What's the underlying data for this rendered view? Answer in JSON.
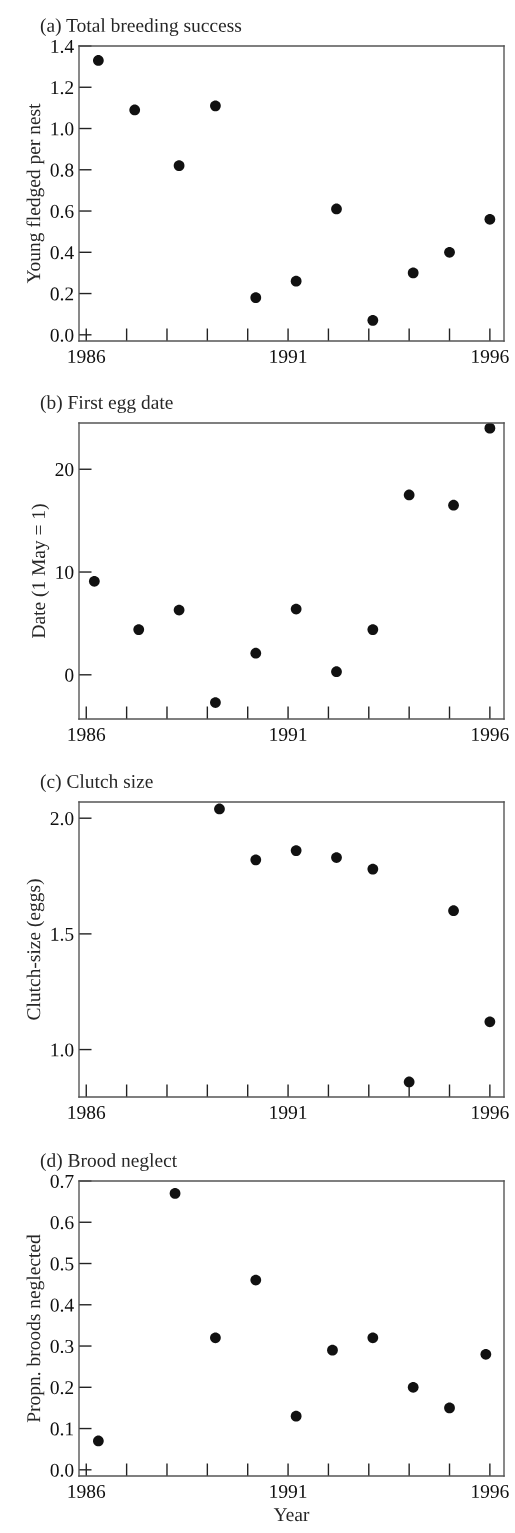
{
  "chart_data": [
    {
      "type": "scatter",
      "title": "(a) Total breeding success",
      "ylabel": "Young fledged per nest",
      "marker": "circle",
      "grid": false,
      "xlim": [
        1985.82,
        1996.35
      ],
      "ylim": [
        -0.03,
        1.4
      ],
      "xticks": [
        1986,
        {
          "value": 1987,
          "label": null
        },
        {
          "value": 1988,
          "label": null
        },
        {
          "value": 1989,
          "label": null
        },
        {
          "value": 1990,
          "label": null
        },
        1991,
        {
          "value": 1992,
          "label": null
        },
        {
          "value": 1993,
          "label": null
        },
        {
          "value": 1994,
          "label": null
        },
        {
          "value": 1995,
          "label": null
        },
        1996
      ],
      "yticks": [
        {
          "value": 0,
          "label": "0.0"
        },
        0.2,
        0.4,
        0.6,
        0.8,
        {
          "value": 1,
          "label": "1.0"
        },
        1.2,
        1.4
      ],
      "series": [
        {
          "color": "#111111",
          "x": [
            1986.3,
            1987.2,
            1988.3,
            1989.2,
            1990.2,
            1991.2,
            1992.2,
            1993.1,
            1994.1,
            1995.0,
            1996.0
          ],
          "values": [
            1.33,
            1.09,
            0.82,
            1.11,
            0.18,
            0.26,
            0.61,
            0.07,
            0.3,
            0.4,
            0.56
          ]
        }
      ]
    },
    {
      "type": "scatter",
      "title": "(b) First egg date",
      "ylabel": "Date (1 May = 1)",
      "marker": "circle",
      "grid": false,
      "xlim": [
        1985.82,
        1996.35
      ],
      "ylim": [
        -4.3,
        24.5
      ],
      "xticks": [
        1986,
        {
          "value": 1987,
          "label": null
        },
        {
          "value": 1988,
          "label": null
        },
        {
          "value": 1989,
          "label": null
        },
        {
          "value": 1990,
          "label": null
        },
        1991,
        {
          "value": 1992,
          "label": null
        },
        {
          "value": 1993,
          "label": null
        },
        {
          "value": 1994,
          "label": null
        },
        {
          "value": 1995,
          "label": null
        },
        1996
      ],
      "yticks": [
        0,
        10,
        20
      ],
      "series": [
        {
          "color": "#111111",
          "x": [
            1986.2,
            1987.3,
            1988.3,
            1989.2,
            1990.2,
            1991.2,
            1992.2,
            1993.1,
            1994.0,
            1995.1,
            1996.0
          ],
          "values": [
            9.1,
            4.4,
            6.3,
            -2.7,
            2.1,
            6.4,
            0.3,
            4.4,
            17.5,
            16.5,
            24.0
          ]
        }
      ]
    },
    {
      "type": "scatter",
      "title": "(c) Clutch size",
      "ylabel": "Clutch-size (eggs)",
      "marker": "circle",
      "grid": false,
      "xlim": [
        1985.82,
        1996.35
      ],
      "ylim": [
        0.795,
        2.07
      ],
      "xticks": [
        1986,
        {
          "value": 1987,
          "label": null
        },
        {
          "value": 1988,
          "label": null
        },
        {
          "value": 1989,
          "label": null
        },
        {
          "value": 1990,
          "label": null
        },
        1991,
        {
          "value": 1992,
          "label": null
        },
        {
          "value": 1993,
          "label": null
        },
        {
          "value": 1994,
          "label": null
        },
        {
          "value": 1995,
          "label": null
        },
        1996
      ],
      "yticks": [
        {
          "value": 1,
          "label": "1.0"
        },
        1.5,
        {
          "value": 2,
          "label": "2.0"
        }
      ],
      "series": [
        {
          "color": "#111111",
          "x": [
            1989.3,
            1990.2,
            1991.2,
            1992.2,
            1993.1,
            1994.0,
            1995.1,
            1996.0
          ],
          "values": [
            2.04,
            1.82,
            1.86,
            1.83,
            1.78,
            0.86,
            1.6,
            1.12
          ]
        }
      ]
    },
    {
      "type": "scatter",
      "title": "(d) Brood neglect",
      "xlabel": "Year",
      "ylabel": "Propn. broods neglected",
      "marker": "circle",
      "grid": false,
      "xlim": [
        1985.82,
        1996.35
      ],
      "ylim": [
        -0.015,
        0.7
      ],
      "xticks": [
        1986,
        {
          "value": 1987,
          "label": null
        },
        {
          "value": 1988,
          "label": null
        },
        {
          "value": 1989,
          "label": null
        },
        {
          "value": 1990,
          "label": null
        },
        1991,
        {
          "value": 1992,
          "label": null
        },
        {
          "value": 1993,
          "label": null
        },
        {
          "value": 1994,
          "label": null
        },
        {
          "value": 1995,
          "label": null
        },
        1996
      ],
      "yticks": [
        {
          "value": 0,
          "label": "0.0"
        },
        0.1,
        0.2,
        0.3,
        0.4,
        0.5,
        0.6,
        0.7
      ],
      "series": [
        {
          "color": "#111111",
          "x": [
            1986.3,
            1988.2,
            1989.2,
            1990.2,
            1991.2,
            1992.1,
            1993.1,
            1994.1,
            1995.0,
            1995.9
          ],
          "values": [
            0.07,
            0.67,
            0.32,
            0.46,
            0.13,
            0.29,
            0.32,
            0.2,
            0.15,
            0.28
          ]
        }
      ]
    }
  ]
}
